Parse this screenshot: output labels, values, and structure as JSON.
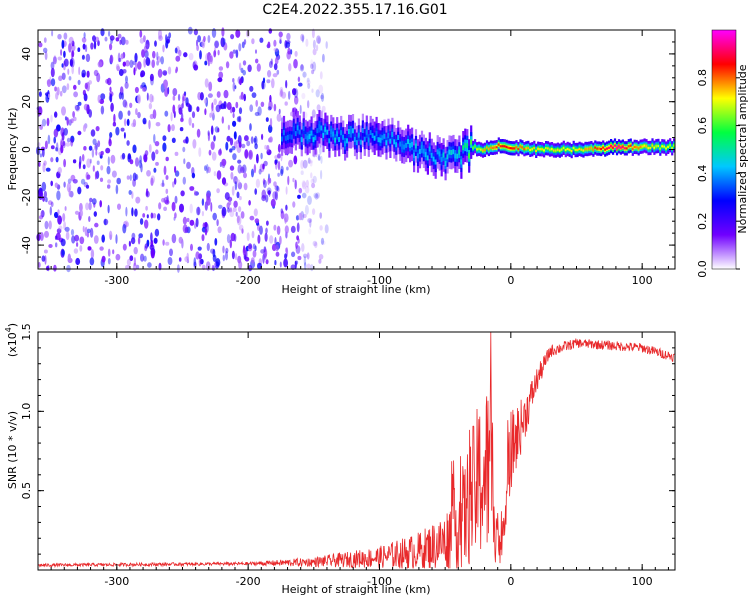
{
  "title": "C2E4.2022.355.17.16.G01",
  "chart_data": [
    {
      "type": "heatmap",
      "xlabel": "Height of straight line (km)",
      "ylabel": "Frequency (Hz)",
      "xlim": [
        -360,
        125
      ],
      "ylim": [
        -50,
        50
      ],
      "xticks": [
        -300,
        -200,
        -100,
        0,
        100
      ],
      "xtick_labels": [
        "-300",
        "-200",
        "-100",
        "0",
        "100"
      ],
      "yticks": [
        -40,
        -20,
        0,
        20,
        40
      ],
      "ytick_labels": [
        "-40",
        "-20",
        "0",
        "20",
        "40"
      ],
      "colorbar": {
        "label": "Normalized spectral amplitude",
        "range": [
          0,
          1
        ],
        "ticks": [
          0.0,
          0.2,
          0.4,
          0.6,
          0.8
        ],
        "tick_labels": [
          "0.0",
          "0.2",
          "0.4",
          "0.6",
          "0.8"
        ],
        "colors": [
          "#ffffff",
          "#7000ff",
          "#0000ff",
          "#00c8ff",
          "#00ff40",
          "#ffff00",
          "#ff0000",
          "#ff00ff"
        ]
      },
      "noise_region": {
        "x_end": -160,
        "amplitude": 0.25
      },
      "ridge": [
        {
          "x": -175,
          "y": 6,
          "amp": 0.35
        },
        {
          "x": -160,
          "y": 7,
          "amp": 0.4
        },
        {
          "x": -145,
          "y": 7,
          "amp": 0.4
        },
        {
          "x": -130,
          "y": 5,
          "amp": 0.42
        },
        {
          "x": -115,
          "y": 5,
          "amp": 0.4
        },
        {
          "x": -100,
          "y": 6,
          "amp": 0.4
        },
        {
          "x": -85,
          "y": 3,
          "amp": 0.4
        },
        {
          "x": -70,
          "y": -1,
          "amp": 0.42
        },
        {
          "x": -55,
          "y": -3,
          "amp": 0.42
        },
        {
          "x": -40,
          "y": -3,
          "amp": 0.45
        },
        {
          "x": -30,
          "y": 1,
          "amp": 0.6
        },
        {
          "x": -20,
          "y": 0,
          "amp": 0.75
        },
        {
          "x": -10,
          "y": 2,
          "amp": 0.85
        },
        {
          "x": 0,
          "y": 1,
          "amp": 0.85
        },
        {
          "x": 20,
          "y": 0,
          "amp": 0.7
        },
        {
          "x": 50,
          "y": 0,
          "amp": 0.7
        },
        {
          "x": 80,
          "y": 1,
          "amp": 0.95
        },
        {
          "x": 100,
          "y": 1,
          "amp": 0.75
        },
        {
          "x": 125,
          "y": 1,
          "amp": 0.65
        }
      ]
    },
    {
      "type": "line",
      "xlabel": "Height of straight line (km)",
      "ylabel": "SNR (10 * v/v)",
      "y_multiplier_label": "(x10",
      "y_multiplier_exp": "4",
      "xlim": [
        -360,
        125
      ],
      "ylim": [
        0,
        1.5
      ],
      "xticks": [
        -300,
        -200,
        -100,
        0,
        100
      ],
      "xtick_labels": [
        "-300",
        "-200",
        "-100",
        "0",
        "100"
      ],
      "yticks": [
        0.5,
        1.0,
        1.5
      ],
      "ytick_labels": [
        "0.5",
        "1.0",
        "1.5"
      ],
      "color": "#e8282a",
      "envelope": [
        {
          "x": -360,
          "y": 0.03,
          "noise": 0.01
        },
        {
          "x": -200,
          "y": 0.04,
          "noise": 0.01
        },
        {
          "x": -150,
          "y": 0.05,
          "noise": 0.03
        },
        {
          "x": -100,
          "y": 0.08,
          "noise": 0.07
        },
        {
          "x": -70,
          "y": 0.12,
          "noise": 0.12
        },
        {
          "x": -50,
          "y": 0.18,
          "noise": 0.18
        },
        {
          "x": -35,
          "y": 0.35,
          "noise": 0.35
        },
        {
          "x": -25,
          "y": 0.55,
          "noise": 0.5
        },
        {
          "x": -15,
          "y": 0.65,
          "noise": 0.6
        },
        {
          "x": -8,
          "y": 0.1,
          "noise": 0.08
        },
        {
          "x": 0,
          "y": 0.75,
          "noise": 0.25
        },
        {
          "x": 10,
          "y": 0.95,
          "noise": 0.15
        },
        {
          "x": 20,
          "y": 1.2,
          "noise": 0.08
        },
        {
          "x": 30,
          "y": 1.38,
          "noise": 0.04
        },
        {
          "x": 50,
          "y": 1.43,
          "noise": 0.03
        },
        {
          "x": 100,
          "y": 1.4,
          "noise": 0.03
        },
        {
          "x": 125,
          "y": 1.34,
          "noise": 0.03
        }
      ]
    }
  ]
}
